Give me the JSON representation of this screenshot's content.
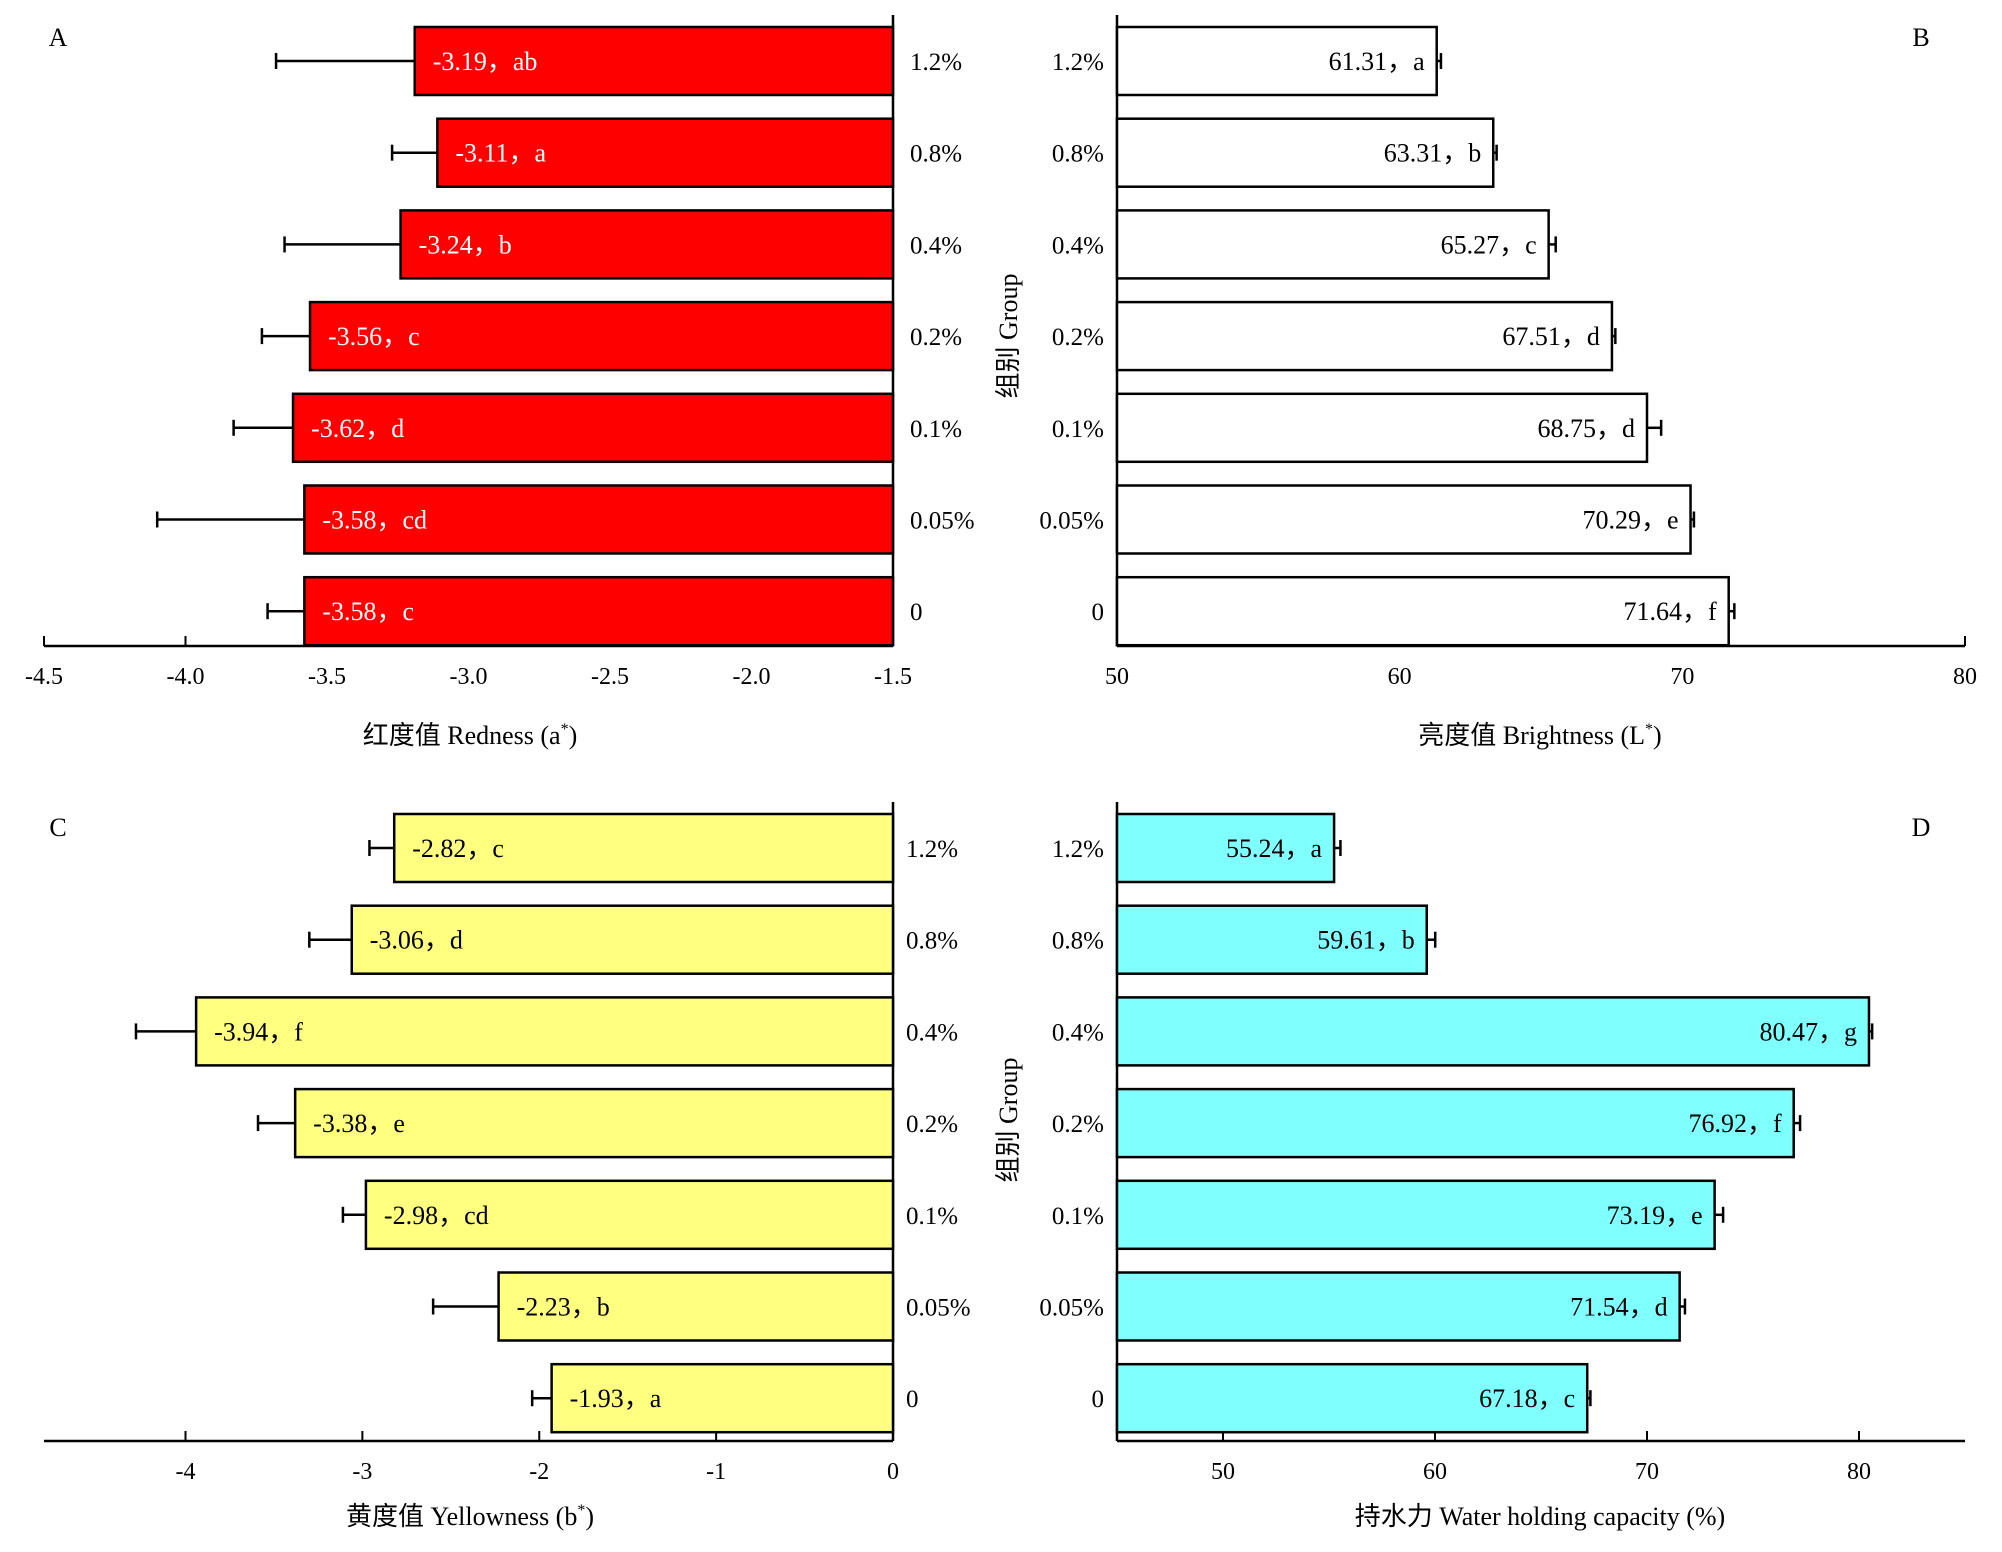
{
  "chart_data": [
    {
      "type": "bar",
      "panel": "A",
      "orientation": "horizontal",
      "xlabel": "红度值 Redness (a*)",
      "xlabel_main": "红度值 Redness (a",
      "xlabel_sup": "*",
      "xlabel_tail": ")",
      "ylabel": "",
      "xlim": [
        -4.5,
        -1.5
      ],
      "xticks": [
        -4.5,
        -4.0,
        -3.5,
        -3.0,
        -2.5,
        -2.0,
        -1.5
      ],
      "xtick_labels": [
        "-4.5",
        "-4.0",
        "-3.5",
        "-3.0",
        "-2.5",
        "-2.0",
        "-1.5"
      ],
      "bar_base": -1.5,
      "categories": [
        "1.2%",
        "0.8%",
        "0.4%",
        "0.2%",
        "0.1%",
        "0.05%",
        "0"
      ],
      "values": [
        -3.19,
        -3.11,
        -3.24,
        -3.56,
        -3.62,
        -3.58,
        -3.58
      ],
      "errors": [
        0.49,
        0.16,
        0.41,
        0.17,
        0.21,
        0.52,
        0.13
      ],
      "labels": [
        "-3.19，ab",
        "-3.11，a",
        "-3.24，b",
        "-3.56，c",
        "-3.62，d",
        "-3.58，cd",
        "-3.58，c"
      ],
      "color": "#ff0000",
      "label_color": "#ffffff"
    },
    {
      "type": "bar",
      "panel": "B",
      "orientation": "horizontal",
      "xlabel": "亮度值 Brightness (L*)",
      "xlabel_main": "亮度值 Brightness (L",
      "xlabel_sup": "*",
      "xlabel_tail": ")",
      "ylabel": "组别 Group",
      "xlim": [
        50,
        80
      ],
      "xticks": [
        50,
        60,
        70,
        80
      ],
      "xtick_labels": [
        "50",
        "60",
        "70",
        "80"
      ],
      "bar_base": 50,
      "categories": [
        "1.2%",
        "0.8%",
        "0.4%",
        "0.2%",
        "0.1%",
        "0.05%",
        "0"
      ],
      "values": [
        61.31,
        63.31,
        65.27,
        67.51,
        68.75,
        70.29,
        71.64
      ],
      "errors": [
        0.15,
        0.12,
        0.25,
        0.12,
        0.5,
        0.12,
        0.2
      ],
      "labels": [
        "61.31，a",
        "63.31，b",
        "65.27，c",
        "67.51，d",
        "68.75，d",
        "70.29，e",
        "71.64，f"
      ],
      "color": "#ffffff",
      "label_color": "#000000"
    },
    {
      "type": "bar",
      "panel": "C",
      "orientation": "horizontal",
      "xlabel": "黄度值 Yellowness (b*)",
      "xlabel_main": "黄度值 Yellowness (b",
      "xlabel_sup": "*",
      "xlabel_tail": ")",
      "ylabel": "",
      "xlim": [
        -4.8,
        0
      ],
      "xticks": [
        -4,
        -3,
        -2,
        -1,
        0
      ],
      "xtick_labels": [
        "-4",
        "-3",
        "-2",
        "-1",
        "0"
      ],
      "bar_base": 0,
      "categories": [
        "1.2%",
        "0.8%",
        "0.4%",
        "0.2%",
        "0.1%",
        "0.05%",
        "0"
      ],
      "values": [
        -2.82,
        -3.06,
        -3.94,
        -3.38,
        -2.98,
        -2.23,
        -1.93
      ],
      "errors": [
        0.14,
        0.24,
        0.34,
        0.21,
        0.13,
        0.37,
        0.11
      ],
      "labels": [
        "-2.82，c",
        "-3.06，d",
        "-3.94，f",
        "-3.38，e",
        "-2.98，cd",
        "-2.23，b",
        "-1.93，a"
      ],
      "color": "#ffff80",
      "label_color": "#000000"
    },
    {
      "type": "bar",
      "panel": "D",
      "orientation": "horizontal",
      "xlabel": "持水力 Water holding capacity (%)",
      "ylabel": "组别 Group",
      "xlim": [
        45,
        85
      ],
      "xticks": [
        50,
        60,
        70,
        80
      ],
      "xtick_labels": [
        "50",
        "60",
        "70",
        "80"
      ],
      "bar_base": 45,
      "categories": [
        "1.2%",
        "0.8%",
        "0.4%",
        "0.2%",
        "0.1%",
        "0.05%",
        "0"
      ],
      "values": [
        55.24,
        59.61,
        80.47,
        76.92,
        73.19,
        71.54,
        67.18
      ],
      "errors": [
        0.3,
        0.4,
        0.15,
        0.3,
        0.4,
        0.25,
        0.15
      ],
      "labels": [
        "55.24，a",
        "59.61，b",
        "80.47，g",
        "76.92，f",
        "73.19，e",
        "71.54，d",
        "67.18，c"
      ],
      "color": "#80ffff",
      "label_color": "#000000"
    }
  ]
}
